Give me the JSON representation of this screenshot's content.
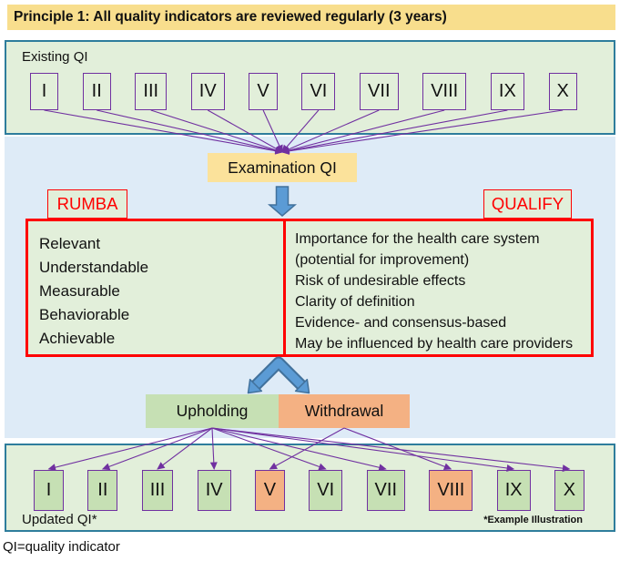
{
  "title": "Principle 1: All quality indicators are reviewed regularly (3 years)",
  "existing": {
    "label": "Existing QI",
    "boxes": [
      "I",
      "II",
      "III",
      "IV",
      "V",
      "VI",
      "VII",
      "VIII",
      "IX",
      "X"
    ]
  },
  "examination": {
    "label": "Examination QI"
  },
  "rumba": {
    "label": "RUMBA",
    "criteria": [
      "Relevant",
      "Understandable",
      "Measurable",
      "Behaviorable",
      "Achievable"
    ]
  },
  "qualify": {
    "label": "QUALIFY",
    "criteria": [
      "Importance for the health care system (potential for improvement)",
      "Risk of undesirable effects",
      "Clarity of definition",
      "Evidence- and consensus-based",
      "May be influenced by health care providers"
    ]
  },
  "decision": {
    "upholding": "Upholding",
    "withdrawal": "Withdrawal"
  },
  "updated": {
    "label": "Updated QI*",
    "footnote": "*Example Illustration",
    "boxes": [
      {
        "label": "I",
        "status": "upheld"
      },
      {
        "label": "II",
        "status": "upheld"
      },
      {
        "label": "III",
        "status": "upheld"
      },
      {
        "label": "IV",
        "status": "upheld"
      },
      {
        "label": "V",
        "status": "withdrawn"
      },
      {
        "label": "VI",
        "status": "upheld"
      },
      {
        "label": "VII",
        "status": "upheld"
      },
      {
        "label": "VIII",
        "status": "withdrawn"
      },
      {
        "label": "IX",
        "status": "upheld"
      },
      {
        "label": "X",
        "status": "upheld"
      }
    ]
  },
  "footer": "QI=quality indicator",
  "colors": {
    "title_bg": "#F8DE8D",
    "exam_bg": "#FBE29B",
    "section_green": "#E2EFDA",
    "section_border": "#2E7D9C",
    "middle_blue": "#DEEBF7",
    "purple_connector": "#7030A0",
    "criteria_border_red": "#FF0000",
    "upheld_green": "#C6E0B4",
    "withdrawn_orange": "#F4B183",
    "block_arrow_blue": "#5B9BD5",
    "block_arrow_outline": "#41719C"
  }
}
